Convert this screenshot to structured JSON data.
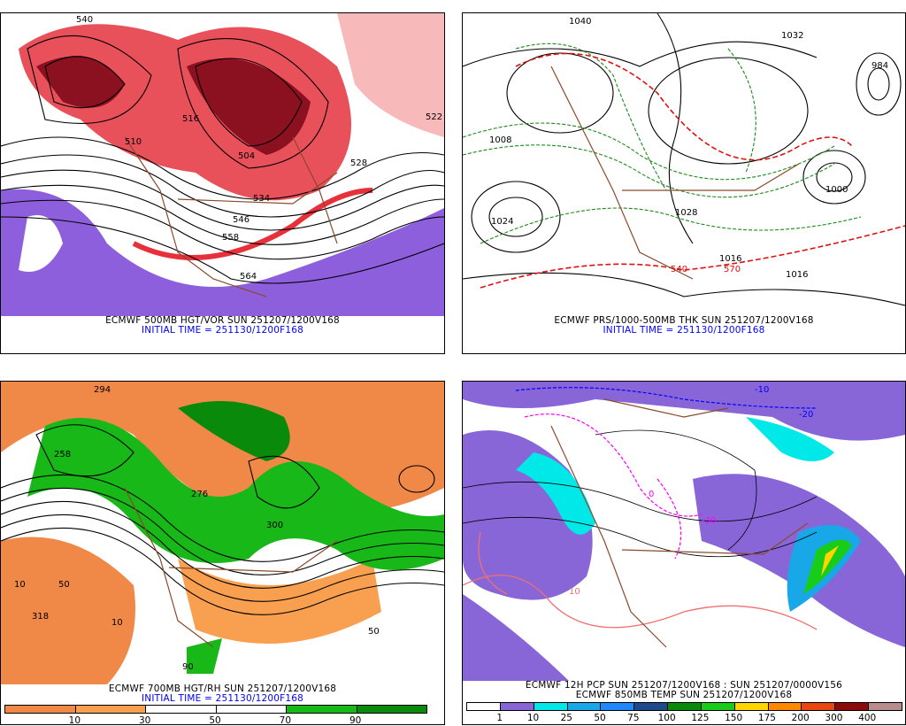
{
  "panels": [
    {
      "title": "ECMWF 500MB HGT/VOR SUN 251207/1200V168",
      "subtitle": "INITIAL TIME = 251130/1200F168",
      "contour_labels": [
        "540",
        "516",
        "510",
        "504",
        "528",
        "522",
        "546",
        "558",
        "564",
        "534"
      ]
    },
    {
      "title": "ECMWF PRS/1000-500MB THK SUN 251207/1200V168",
      "subtitle": "INITIAL TIME = 251130/1200F168",
      "contour_labels": [
        "1040",
        "984",
        "1008",
        "1000",
        "1024",
        "1028",
        "1016",
        "540",
        "570",
        "1016",
        "1032"
      ]
    },
    {
      "title": "ECMWF 700MB HGT/RH SUN 251207/1200V168",
      "subtitle": "INITIAL TIME = 251130/1200F168",
      "contour_labels": [
        "294",
        "258",
        "276",
        "300",
        "10",
        "50",
        "90",
        "318",
        "10",
        "50"
      ],
      "colorbar": {
        "colors": [
          "#f08848",
          "#f8a050",
          "#ffffff",
          "#ffffff",
          "#18b818",
          "#0a8a0a"
        ],
        "labels": [
          "10",
          "30",
          "50",
          "70",
          "90"
        ]
      }
    },
    {
      "title": "ECMWF 12H PCP SUN 251207/1200V168 : SUN 251207/0000V156",
      "subtitle": "ECMWF 850MB TEMP SUN 251207/1200V168",
      "contour_labels": [
        "-10",
        "-20",
        "-30",
        "0",
        "10"
      ],
      "colorbar": {
        "colors": [
          "#ffffff",
          "#8866d8",
          "#00e8e8",
          "#18a8e8",
          "#1e88ff",
          "#1e4a8c",
          "#0a8a0a",
          "#18cc18",
          "#ffd400",
          "#ff8800",
          "#e84810",
          "#8c0a0a",
          "#b88c8c"
        ],
        "labels": [
          "1",
          "10",
          "25",
          "50",
          "75",
          "100",
          "125",
          "150",
          "175",
          "200",
          "300",
          "400"
        ]
      }
    }
  ]
}
